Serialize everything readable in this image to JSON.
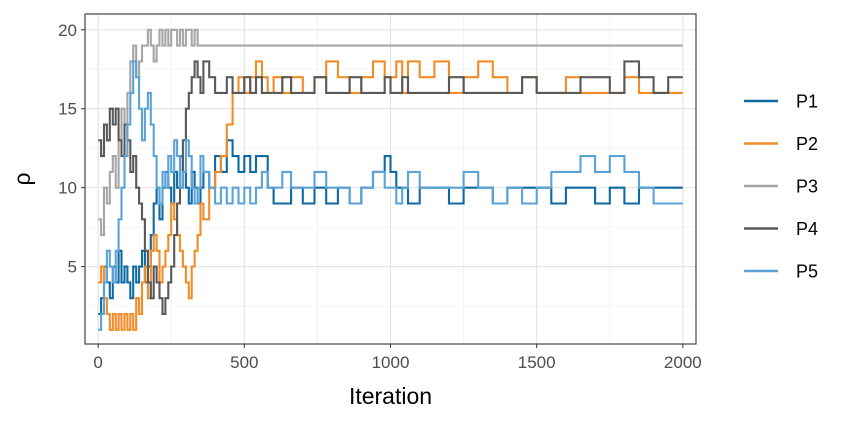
{
  "chart_data": {
    "type": "line",
    "title": "",
    "xlabel": "Iteration",
    "ylabel": "ρ",
    "xlim": [
      -45,
      2045
    ],
    "ylim": [
      0.1,
      21.0
    ],
    "x_ticks": [
      0,
      500,
      1000,
      1500,
      2000
    ],
    "y_ticks": [
      5,
      10,
      15,
      20
    ],
    "x_tick_labels": [
      "0",
      "500",
      "1000",
      "1500",
      "2000"
    ],
    "y_tick_labels": [
      "5",
      "10",
      "15",
      "20"
    ],
    "grid": true,
    "legend_position": "right",
    "series": [
      {
        "name": "P1",
        "color": "#0e6aa1",
        "x": [
          0,
          10,
          20,
          30,
          40,
          50,
          60,
          70,
          80,
          90,
          100,
          110,
          120,
          130,
          140,
          150,
          160,
          170,
          180,
          190,
          200,
          210,
          220,
          230,
          240,
          250,
          260,
          270,
          280,
          290,
          300,
          310,
          320,
          330,
          340,
          350,
          360,
          380,
          400,
          420,
          440,
          460,
          480,
          500,
          520,
          540,
          560,
          580,
          600,
          630,
          660,
          700,
          740,
          780,
          820,
          860,
          900,
          940,
          980,
          1000,
          1020,
          1040,
          1060,
          1100,
          1150,
          1200,
          1250,
          1300,
          1350,
          1400,
          1450,
          1500,
          1550,
          1600,
          1650,
          1700,
          1750,
          1800,
          1850,
          1900,
          1950,
          2000
        ],
        "values": [
          2,
          3,
          5,
          4,
          3,
          5,
          4,
          6,
          4,
          5,
          4,
          3,
          5,
          4,
          5,
          6,
          4,
          5,
          7,
          9,
          10,
          8,
          10,
          11,
          10,
          9,
          11,
          10,
          12,
          11,
          10,
          9,
          11,
          10,
          9,
          10,
          11,
          10,
          12,
          11,
          13,
          12,
          11,
          12,
          11,
          12,
          12,
          10,
          9,
          9,
          10,
          9,
          10,
          9,
          10,
          9,
          10,
          11,
          12,
          11,
          10,
          10,
          9,
          10,
          10,
          9,
          10,
          10,
          9,
          10,
          10,
          10,
          9,
          10,
          10,
          9,
          10,
          9,
          10,
          10,
          10,
          10
        ]
      },
      {
        "name": "P2",
        "color": "#f28c28",
        "x": [
          0,
          10,
          20,
          30,
          40,
          50,
          60,
          70,
          80,
          90,
          100,
          110,
          120,
          130,
          140,
          150,
          160,
          170,
          180,
          190,
          200,
          210,
          220,
          230,
          240,
          250,
          260,
          270,
          280,
          290,
          300,
          310,
          320,
          330,
          340,
          350,
          360,
          380,
          400,
          420,
          440,
          460,
          480,
          500,
          520,
          540,
          560,
          580,
          600,
          630,
          660,
          700,
          740,
          780,
          820,
          860,
          900,
          940,
          980,
          1000,
          1020,
          1040,
          1060,
          1100,
          1150,
          1200,
          1250,
          1300,
          1350,
          1400,
          1450,
          1500,
          1550,
          1600,
          1650,
          1700,
          1750,
          1800,
          1850,
          1900,
          1950,
          2000
        ],
        "values": [
          4,
          5,
          3,
          2,
          1,
          2,
          1,
          2,
          1,
          2,
          1,
          2,
          1,
          3,
          2,
          4,
          5,
          3,
          6,
          7,
          6,
          4,
          5,
          6,
          7,
          9,
          8,
          7,
          6,
          5,
          4,
          3,
          5,
          6,
          7,
          9,
          8,
          10,
          11,
          12,
          14,
          16,
          17,
          16,
          17,
          18,
          17,
          16,
          17,
          16,
          17,
          16,
          17,
          18,
          17,
          16,
          17,
          18,
          17,
          17,
          18,
          16,
          18,
          17,
          18,
          16,
          17,
          18,
          17,
          16,
          17,
          16,
          16,
          17,
          16,
          16,
          16,
          17,
          16,
          16,
          16,
          16
        ]
      },
      {
        "name": "P3",
        "color": "#a6a6a6",
        "x": [
          0,
          10,
          20,
          30,
          40,
          50,
          60,
          70,
          80,
          90,
          100,
          110,
          120,
          130,
          140,
          150,
          160,
          170,
          180,
          190,
          200,
          210,
          220,
          230,
          240,
          250,
          260,
          270,
          280,
          290,
          300,
          310,
          320,
          330,
          340,
          350,
          360,
          380,
          400,
          420,
          440,
          460,
          480,
          500,
          520,
          540,
          560,
          580,
          600,
          630,
          660,
          700,
          740,
          780,
          820,
          860,
          900,
          940,
          980,
          1000,
          1020,
          1040,
          1060,
          1100,
          1150,
          1200,
          1250,
          1300,
          1350,
          1400,
          1450,
          1500,
          1550,
          1600,
          1650,
          1700,
          1750,
          1800,
          1850,
          1900,
          1950,
          2000
        ],
        "values": [
          8,
          7,
          10,
          9,
          11,
          12,
          10,
          13,
          15,
          14,
          16,
          18,
          19,
          17,
          18,
          19,
          19,
          20,
          19,
          18,
          19,
          20,
          19,
          20,
          19,
          20,
          20,
          19,
          20,
          19,
          20,
          20,
          19,
          20,
          19,
          19,
          19,
          19,
          19,
          19,
          19,
          19,
          19,
          19,
          19,
          19,
          19,
          19,
          19,
          19,
          19,
          19,
          19,
          19,
          19,
          19,
          19,
          19,
          19,
          19,
          19,
          19,
          19,
          19,
          19,
          19,
          19,
          19,
          19,
          19,
          19,
          19,
          19,
          19,
          19,
          19,
          19,
          19,
          19,
          19,
          19,
          19
        ]
      },
      {
        "name": "P4",
        "color": "#595959",
        "x": [
          0,
          10,
          20,
          30,
          40,
          50,
          60,
          70,
          80,
          90,
          100,
          110,
          120,
          130,
          140,
          150,
          160,
          170,
          180,
          190,
          200,
          210,
          220,
          230,
          240,
          250,
          260,
          270,
          280,
          290,
          300,
          310,
          320,
          330,
          340,
          350,
          360,
          380,
          400,
          420,
          440,
          460,
          480,
          500,
          520,
          540,
          560,
          580,
          600,
          630,
          660,
          700,
          740,
          780,
          820,
          860,
          900,
          940,
          980,
          1000,
          1020,
          1040,
          1060,
          1100,
          1150,
          1200,
          1250,
          1300,
          1350,
          1400,
          1450,
          1500,
          1550,
          1600,
          1650,
          1700,
          1750,
          1800,
          1850,
          1900,
          1950,
          2000
        ],
        "values": [
          13,
          12,
          14,
          13,
          15,
          14,
          15,
          13,
          12,
          14,
          13,
          11,
          12,
          10,
          9,
          8,
          6,
          4,
          3,
          5,
          4,
          3,
          2,
          3,
          4,
          5,
          7,
          9,
          10,
          13,
          15,
          16,
          17,
          18,
          17,
          16,
          18,
          17,
          16,
          16,
          17,
          16,
          16,
          17,
          16,
          17,
          16,
          16,
          16,
          17,
          16,
          16,
          17,
          16,
          16,
          17,
          16,
          16,
          17,
          16,
          16,
          17,
          16,
          16,
          16,
          17,
          16,
          16,
          16,
          16,
          17,
          16,
          16,
          16,
          17,
          17,
          16,
          18,
          17,
          16,
          17,
          17
        ]
      },
      {
        "name": "P5",
        "color": "#5ba3d6",
        "x": [
          0,
          10,
          20,
          30,
          40,
          50,
          60,
          70,
          80,
          90,
          100,
          110,
          120,
          130,
          140,
          150,
          160,
          170,
          180,
          190,
          200,
          210,
          220,
          230,
          240,
          250,
          260,
          270,
          280,
          290,
          300,
          310,
          320,
          330,
          340,
          350,
          360,
          380,
          400,
          420,
          440,
          460,
          480,
          500,
          520,
          540,
          560,
          580,
          600,
          630,
          660,
          700,
          740,
          780,
          820,
          860,
          900,
          940,
          980,
          1000,
          1020,
          1040,
          1060,
          1100,
          1150,
          1200,
          1250,
          1300,
          1350,
          1400,
          1450,
          1500,
          1550,
          1600,
          1650,
          1700,
          1750,
          1800,
          1850,
          1900,
          1950,
          2000
        ],
        "values": [
          1,
          2,
          4,
          6,
          5,
          4,
          6,
          8,
          10,
          12,
          14,
          16,
          18,
          17,
          15,
          13,
          15,
          16,
          14,
          12,
          10,
          9,
          11,
          10,
          12,
          11,
          13,
          12,
          10,
          11,
          13,
          12,
          10,
          9,
          10,
          12,
          11,
          10,
          9,
          10,
          9,
          10,
          9,
          10,
          9,
          10,
          11,
          10,
          10,
          11,
          10,
          10,
          11,
          10,
          10,
          9,
          10,
          11,
          10,
          10,
          9,
          10,
          11,
          10,
          10,
          10,
          11,
          10,
          9,
          10,
          9,
          10,
          11,
          11,
          12,
          11,
          12,
          11,
          10,
          9,
          9,
          9
        ]
      }
    ]
  }
}
